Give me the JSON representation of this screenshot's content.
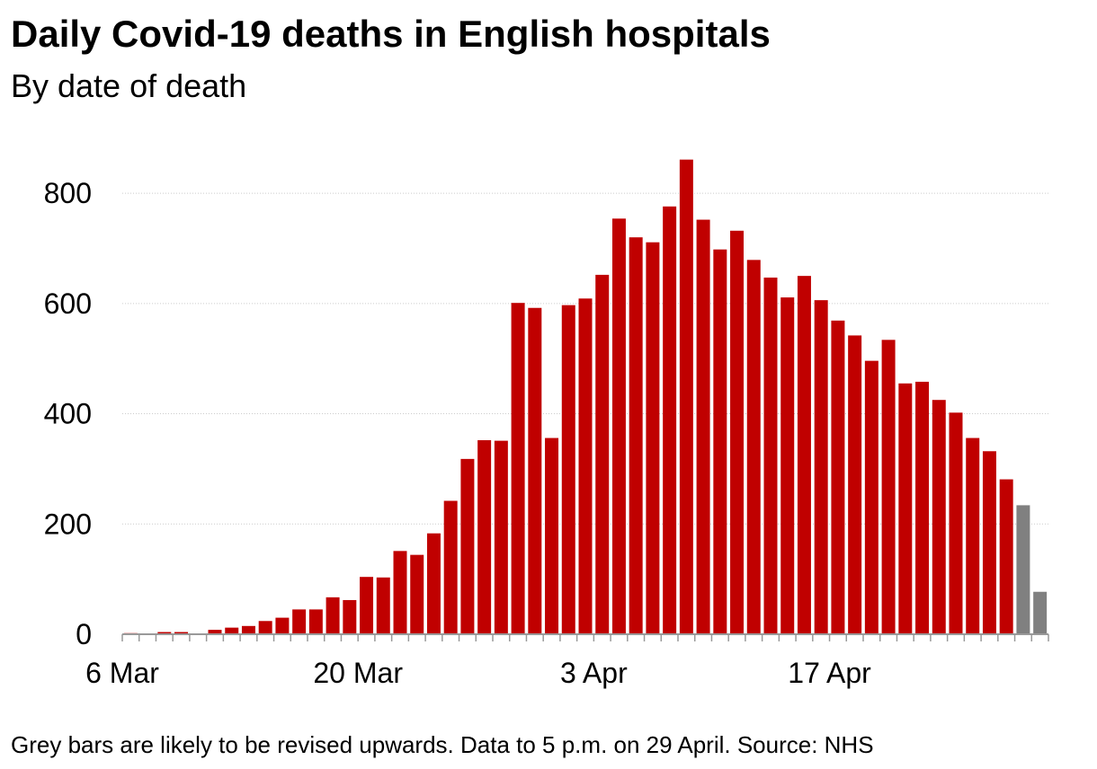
{
  "chart_data": {
    "type": "bar",
    "title": "Daily Covid-19 deaths in English hospitals",
    "subtitle": "By date of death",
    "xlabel": "",
    "ylabel": "",
    "ylim": [
      0,
      880
    ],
    "yticks": [
      0,
      200,
      400,
      600,
      800
    ],
    "xtick_labels": [
      {
        "label": "6 Mar",
        "index": 0
      },
      {
        "label": "20 Mar",
        "index": 14
      },
      {
        "label": "3 Apr",
        "index": 28
      },
      {
        "label": "17 Apr",
        "index": 42
      }
    ],
    "grid": true,
    "colors": {
      "confirmed": "#c00000",
      "provisional": "#808080",
      "grid": "#cccccc",
      "axis": "#999999"
    },
    "series": [
      {
        "name": "Deaths",
        "start_date": "6 Mar",
        "provisional_from_index": 53,
        "values": [
          2,
          1,
          4,
          4,
          1,
          8,
          12,
          15,
          24,
          30,
          45,
          45,
          67,
          62,
          104,
          103,
          151,
          144,
          183,
          242,
          318,
          352,
          351,
          601,
          592,
          356,
          597,
          609,
          652,
          754,
          720,
          711,
          776,
          861,
          752,
          698,
          732,
          679,
          647,
          611,
          650,
          606,
          569,
          542,
          496,
          534,
          455,
          458,
          425,
          402,
          356,
          332,
          281,
          234,
          77
        ]
      }
    ],
    "footnote": "Grey bars are likely to be revised upwards. Data to 5 p.m. on 29 April. Source: NHS"
  }
}
